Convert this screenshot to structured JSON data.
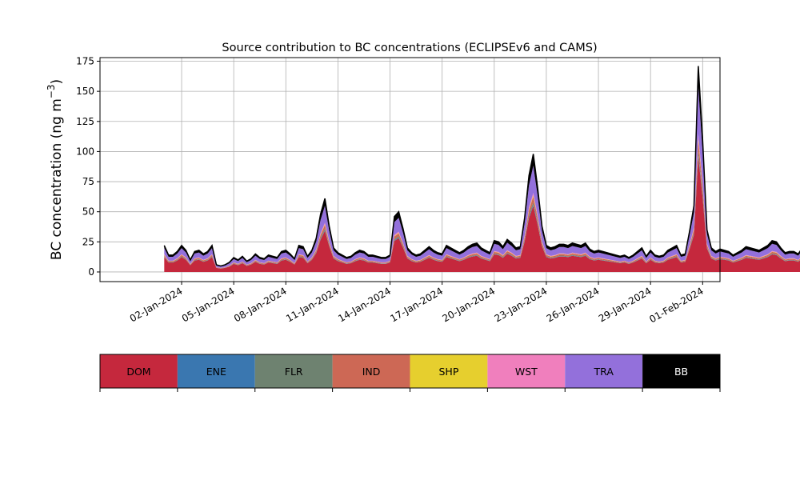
{
  "chart_data": {
    "type": "area",
    "stacked": true,
    "title": "Source contribution to BC concentrations (ECLIPSEv6 and CAMS)",
    "ylabel": "BC concentration (ng m",
    "ylabel_superscript": "−3",
    "ylabel_suffix": ")",
    "xlabel": "",
    "ylim": [
      -8,
      178
    ],
    "xlim_days": [
      -3.7,
      32.0
    ],
    "yticks": [
      0,
      25,
      50,
      75,
      100,
      125,
      150,
      175
    ],
    "x_start": "01-Jan-2024",
    "x_step": "6 hours",
    "xticks": [
      {
        "day": 1,
        "label": "02-Jan-2024"
      },
      {
        "day": 4,
        "label": "05-Jan-2024"
      },
      {
        "day": 7,
        "label": "08-Jan-2024"
      },
      {
        "day": 10,
        "label": "11-Jan-2024"
      },
      {
        "day": 13,
        "label": "14-Jan-2024"
      },
      {
        "day": 16,
        "label": "17-Jan-2024"
      },
      {
        "day": 19,
        "label": "20-Jan-2024"
      },
      {
        "day": 22,
        "label": "23-Jan-2024"
      },
      {
        "day": 25,
        "label": "26-Jan-2024"
      },
      {
        "day": 28,
        "label": "29-Jan-2024"
      },
      {
        "day": 31,
        "label": "01-Feb-2024"
      }
    ],
    "grid": true,
    "legend_placement": "below chart",
    "total": [
      22,
      14,
      14,
      17,
      22,
      18,
      10,
      17,
      18,
      15,
      17,
      22,
      6,
      5,
      6,
      8,
      12,
      10,
      13,
      9,
      11,
      15,
      12,
      11,
      14,
      13,
      12,
      17,
      18,
      15,
      11,
      22,
      21,
      13,
      18,
      28,
      48,
      61,
      38,
      20,
      16,
      14,
      12,
      13,
      16,
      18,
      17,
      14,
      14,
      13,
      12,
      12,
      14,
      46,
      50,
      36,
      20,
      16,
      14,
      15,
      18,
      21,
      18,
      16,
      15,
      22,
      20,
      18,
      16,
      18,
      21,
      23,
      24,
      20,
      18,
      16,
      26,
      25,
      21,
      27,
      24,
      20,
      21,
      45,
      80,
      98,
      70,
      38,
      22,
      20,
      21,
      23,
      23,
      22,
      24,
      23,
      22,
      24,
      19,
      17,
      18,
      17,
      16,
      15,
      14,
      13,
      14,
      12,
      14,
      17,
      20,
      13,
      18,
      14,
      13,
      14,
      18,
      20,
      22,
      14,
      15,
      34,
      55,
      171,
      110,
      35,
      20,
      17,
      19,
      18,
      17,
      14,
      16,
      18,
      21,
      20,
      19,
      18,
      20,
      22,
      26,
      25,
      20,
      16,
      17,
      17,
      15,
      20,
      24,
      28,
      33,
      32,
      33,
      19,
      16,
      15,
      16,
      14,
      13,
      14,
      13,
      14,
      15,
      18,
      22,
      26,
      26,
      19,
      13,
      10,
      11,
      10,
      14,
      12,
      13,
      11,
      13,
      11,
      12,
      10,
      9,
      8,
      11,
      10,
      10,
      11,
      12,
      11,
      10,
      7,
      6,
      10,
      11,
      9,
      12,
      13,
      13,
      14,
      14,
      15,
      14,
      15,
      14,
      12,
      13,
      13,
      14,
      12,
      11,
      11,
      13,
      12,
      12,
      21,
      17,
      14,
      14,
      11,
      10,
      12,
      13,
      10,
      11,
      9,
      10,
      12,
      11,
      10,
      8,
      7,
      8,
      10,
      9,
      10,
      8,
      8,
      8,
      7,
      8,
      8,
      10,
      11,
      9,
      10,
      12,
      10,
      21,
      26,
      26,
      25,
      22,
      24,
      20,
      18,
      26,
      28
    ],
    "series": [
      {
        "name": "DOM",
        "color": "#c5283d",
        "share": 0.56
      },
      {
        "name": "ENE",
        "color": "#3a77b0",
        "share": 0.01
      },
      {
        "name": "FLR",
        "color": "#6e8270",
        "share": 0.02
      },
      {
        "name": "IND",
        "color": "#cd6855",
        "share": 0.05
      },
      {
        "name": "SHP",
        "color": "#e6cf2e",
        "share": 0.01
      },
      {
        "name": "WST",
        "color": "#f07fbd",
        "share": 0.02
      },
      {
        "name": "TRA",
        "color": "#9370db",
        "share": 0.23
      },
      {
        "name": "BB",
        "color": "#000000",
        "share": 0.1
      }
    ]
  }
}
